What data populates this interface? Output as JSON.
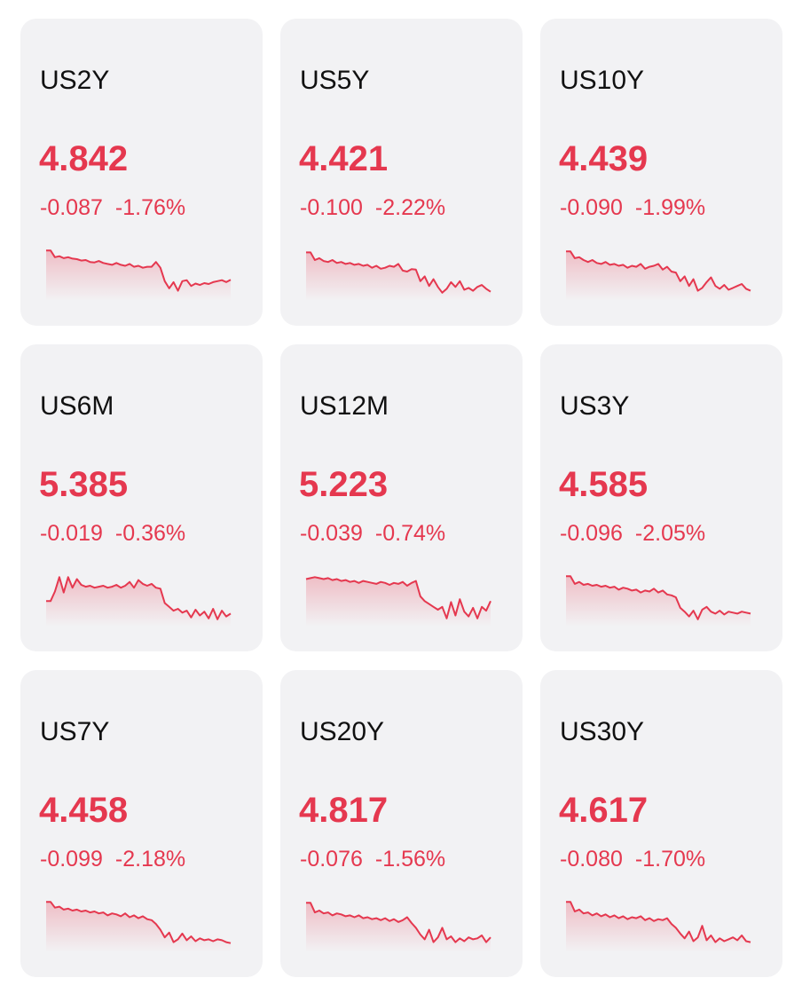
{
  "colors": {
    "card_bg": "#f2f2f4",
    "down": "#e5384f",
    "symbol": "#111111"
  },
  "quotes": [
    {
      "symbol": "US2Y",
      "price": "4.842",
      "change": "-0.087",
      "change_pct": "-1.76%",
      "trend": [
        0.94,
        0.94,
        0.8,
        0.82,
        0.78,
        0.8,
        0.77,
        0.76,
        0.73,
        0.74,
        0.7,
        0.69,
        0.72,
        0.68,
        0.66,
        0.64,
        0.68,
        0.64,
        0.62,
        0.66,
        0.6,
        0.62,
        0.58,
        0.6,
        0.6,
        0.7,
        0.58,
        0.3,
        0.15,
        0.28,
        0.1,
        0.3,
        0.32,
        0.2,
        0.25,
        0.22,
        0.26,
        0.24,
        0.28,
        0.3,
        0.32,
        0.28,
        0.33
      ]
    },
    {
      "symbol": "US5Y",
      "price": "4.421",
      "change": "-0.100",
      "change_pct": "-2.22%",
      "trend": [
        0.9,
        0.9,
        0.74,
        0.78,
        0.72,
        0.7,
        0.74,
        0.68,
        0.7,
        0.66,
        0.68,
        0.64,
        0.66,
        0.62,
        0.64,
        0.58,
        0.62,
        0.56,
        0.58,
        0.62,
        0.6,
        0.66,
        0.52,
        0.5,
        0.55,
        0.54,
        0.3,
        0.4,
        0.2,
        0.34,
        0.18,
        0.06,
        0.14,
        0.28,
        0.18,
        0.3,
        0.12,
        0.16,
        0.1,
        0.18,
        0.22,
        0.14,
        0.08
      ]
    },
    {
      "symbol": "US10Y",
      "price": "4.439",
      "change": "-0.090",
      "change_pct": "-1.99%",
      "trend": [
        0.92,
        0.92,
        0.78,
        0.8,
        0.74,
        0.7,
        0.74,
        0.68,
        0.66,
        0.7,
        0.64,
        0.66,
        0.62,
        0.64,
        0.58,
        0.62,
        0.6,
        0.66,
        0.56,
        0.6,
        0.62,
        0.66,
        0.54,
        0.6,
        0.5,
        0.48,
        0.3,
        0.4,
        0.2,
        0.34,
        0.1,
        0.16,
        0.28,
        0.38,
        0.2,
        0.14,
        0.22,
        0.12,
        0.16,
        0.2,
        0.24,
        0.14,
        0.1
      ]
    },
    {
      "symbol": "US6M",
      "price": "5.385",
      "change": "-0.019",
      "change_pct": "-0.36%",
      "trend": [
        0.42,
        0.42,
        0.62,
        0.92,
        0.6,
        0.92,
        0.7,
        0.88,
        0.76,
        0.72,
        0.74,
        0.7,
        0.72,
        0.74,
        0.7,
        0.72,
        0.76,
        0.7,
        0.74,
        0.82,
        0.7,
        0.86,
        0.78,
        0.74,
        0.78,
        0.7,
        0.68,
        0.38,
        0.3,
        0.22,
        0.26,
        0.18,
        0.22,
        0.08,
        0.24,
        0.12,
        0.2,
        0.06,
        0.26,
        0.04,
        0.22,
        0.1,
        0.16
      ]
    },
    {
      "symbol": "US12M",
      "price": "5.223",
      "change": "-0.039",
      "change_pct": "-0.74%",
      "trend": [
        0.88,
        0.9,
        0.92,
        0.9,
        0.88,
        0.9,
        0.86,
        0.88,
        0.84,
        0.86,
        0.82,
        0.84,
        0.8,
        0.84,
        0.82,
        0.8,
        0.78,
        0.82,
        0.8,
        0.76,
        0.8,
        0.78,
        0.82,
        0.74,
        0.8,
        0.84,
        0.52,
        0.42,
        0.36,
        0.3,
        0.24,
        0.3,
        0.06,
        0.4,
        0.12,
        0.46,
        0.2,
        0.1,
        0.28,
        0.06,
        0.3,
        0.22,
        0.42
      ]
    },
    {
      "symbol": "US3Y",
      "price": "4.585",
      "change": "-0.096",
      "change_pct": "-2.05%",
      "trend": [
        0.94,
        0.94,
        0.78,
        0.82,
        0.76,
        0.78,
        0.74,
        0.76,
        0.72,
        0.74,
        0.7,
        0.72,
        0.66,
        0.7,
        0.68,
        0.64,
        0.66,
        0.6,
        0.64,
        0.62,
        0.68,
        0.6,
        0.64,
        0.56,
        0.54,
        0.5,
        0.28,
        0.2,
        0.1,
        0.22,
        0.04,
        0.24,
        0.3,
        0.2,
        0.16,
        0.22,
        0.14,
        0.2,
        0.18,
        0.16,
        0.2,
        0.18,
        0.16
      ]
    },
    {
      "symbol": "US7Y",
      "price": "4.458",
      "change": "-0.099",
      "change_pct": "-2.18%",
      "trend": [
        0.94,
        0.94,
        0.82,
        0.84,
        0.78,
        0.8,
        0.76,
        0.78,
        0.74,
        0.76,
        0.72,
        0.74,
        0.7,
        0.72,
        0.66,
        0.7,
        0.68,
        0.64,
        0.7,
        0.62,
        0.66,
        0.6,
        0.64,
        0.58,
        0.56,
        0.48,
        0.36,
        0.2,
        0.3,
        0.1,
        0.16,
        0.28,
        0.14,
        0.22,
        0.12,
        0.18,
        0.14,
        0.16,
        0.12,
        0.16,
        0.14,
        0.1,
        0.08
      ]
    },
    {
      "symbol": "US20Y",
      "price": "4.817",
      "change": "-0.076",
      "change_pct": "-1.56%",
      "trend": [
        0.92,
        0.92,
        0.72,
        0.76,
        0.7,
        0.72,
        0.66,
        0.7,
        0.68,
        0.64,
        0.66,
        0.62,
        0.66,
        0.6,
        0.62,
        0.58,
        0.6,
        0.56,
        0.6,
        0.54,
        0.58,
        0.52,
        0.56,
        0.62,
        0.5,
        0.4,
        0.26,
        0.16,
        0.36,
        0.1,
        0.2,
        0.4,
        0.16,
        0.22,
        0.1,
        0.18,
        0.12,
        0.2,
        0.16,
        0.18,
        0.24,
        0.1,
        0.2
      ]
    },
    {
      "symbol": "US30Y",
      "price": "4.617",
      "change": "-0.080",
      "change_pct": "-1.70%",
      "trend": [
        0.94,
        0.94,
        0.74,
        0.78,
        0.7,
        0.72,
        0.66,
        0.7,
        0.64,
        0.68,
        0.62,
        0.66,
        0.6,
        0.64,
        0.58,
        0.62,
        0.6,
        0.64,
        0.56,
        0.6,
        0.54,
        0.58,
        0.56,
        0.6,
        0.48,
        0.4,
        0.28,
        0.18,
        0.32,
        0.12,
        0.2,
        0.44,
        0.14,
        0.24,
        0.1,
        0.18,
        0.12,
        0.16,
        0.2,
        0.14,
        0.24,
        0.12,
        0.1
      ]
    }
  ]
}
